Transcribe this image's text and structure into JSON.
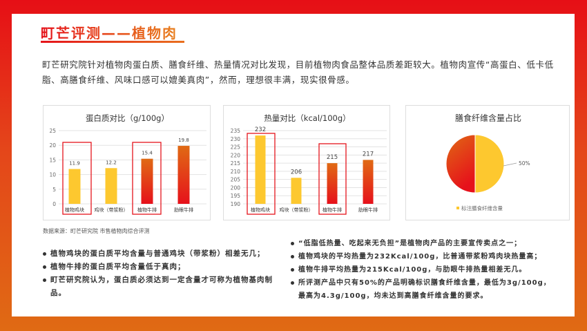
{
  "title": "町芒评测——植物肉",
  "intro": "町芒研究院针对植物肉蛋白质、膳食纤维、热量情况对比发现，目前植物肉食品整体品质差距较大。植物肉宣传“高蛋白、低卡低脂、高膳食纤维、风味口感可以媲美真肉”，然而，理想很丰满，现实很骨感。",
  "source": "数据来源：町芒研究院   市售植物肉综合评测",
  "colors": {
    "yellow": "#fdc82f",
    "red_top": "#e06a14",
    "red_bottom": "#e6111b",
    "highlight_box": "#e5131b"
  },
  "chart_data": [
    {
      "type": "bar",
      "title": "蛋白质对比（g/100g）",
      "categories": [
        "植物鸡块",
        "鸡块（带浆粉）",
        "植物牛排",
        "肋眼牛排"
      ],
      "values": [
        11.9,
        12.2,
        15.4,
        19.8
      ],
      "value_labels": [
        "11.9",
        "12.2",
        "15.4",
        "19.8"
      ],
      "ylim": [
        0,
        25
      ],
      "yticks": [
        0,
        5,
        10,
        15,
        20,
        25
      ],
      "grid": true,
      "highlighted": [
        "植物鸡块",
        "植物牛排"
      ]
    },
    {
      "type": "bar",
      "title": "热量对比（kcal/100g）",
      "categories": [
        "植物鸡块",
        "鸡块（带浆粉）",
        "植物牛排",
        "肋眼牛排"
      ],
      "values": [
        232,
        206,
        215,
        217
      ],
      "value_labels": [
        "232",
        "206",
        "215",
        "217"
      ],
      "ylim": [
        190,
        235
      ],
      "yticks": [
        190,
        195,
        200,
        205,
        210,
        215,
        220,
        225,
        230,
        235
      ],
      "grid": true,
      "highlighted": [
        "植物鸡块",
        "植物牛排"
      ]
    },
    {
      "type": "pie",
      "title": "膳食纤维含量占比",
      "slices": [
        {
          "name": "标注膳食纤维含量",
          "value": 50,
          "label": "50%"
        },
        {
          "value": 50
        }
      ],
      "legend": "bottom"
    }
  ],
  "left_bullets": [
    "植物鸡块的蛋白质平均含量与普通鸡块（带浆粉）相差无几；",
    "植物牛排的蛋白质平均含量低于真肉；",
    "町芒研究院认为，蛋白质必须达到一定含量才可称为植物基肉制品。"
  ],
  "right_bullets": [
    "“低脂低热量、吃起来无负担”是植物肉产品的主要宣传卖点之一；",
    "植物鸡块的平均热量为232Kcal/100g，比普通带浆粉鸡肉块热量高；",
    "植物牛排平均热量为215Kcal/100g，与肋眼牛排热量相差无几。",
    "所评测产品中只有50%的产品明确标识膳食纤维含量，最低为3g/100g，最高为4.3g/100g，均未达到高膳食纤维含量的要求。"
  ]
}
